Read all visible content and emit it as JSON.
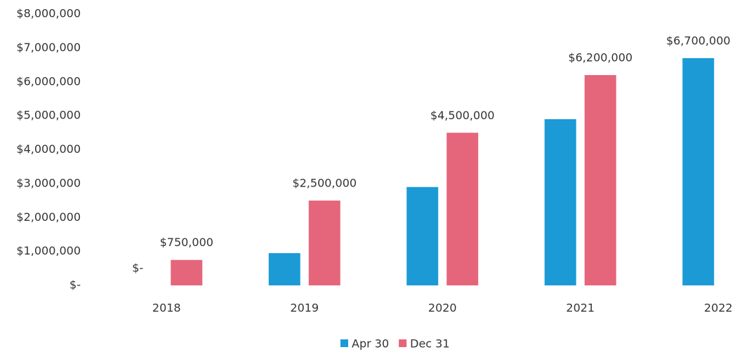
{
  "chart_data": {
    "type": "bar",
    "categories": [
      "2018",
      "2019",
      "2020",
      "2021",
      "2022"
    ],
    "series": [
      {
        "name": "Apr 30",
        "color": "#1b9ad6",
        "values": [
          0,
          950000,
          2900000,
          4900000,
          6700000
        ],
        "value_labels": [
          "$-",
          null,
          null,
          null,
          "$6,700,000"
        ]
      },
      {
        "name": "Dec 31",
        "color": "#e5657a",
        "values": [
          750000,
          2500000,
          4500000,
          6200000,
          null
        ],
        "value_labels": [
          "$750,000",
          "$2,500,000",
          "$4,500,000",
          "$6,200,000",
          null
        ]
      }
    ],
    "ylim": [
      0,
      8000000
    ],
    "yticks": [
      {
        "value": 0,
        "label": "$-"
      },
      {
        "value": 1000000,
        "label": "$1,000,000"
      },
      {
        "value": 2000000,
        "label": "$2,000,000"
      },
      {
        "value": 3000000,
        "label": "$3,000,000"
      },
      {
        "value": 4000000,
        "label": "$4,000,000"
      },
      {
        "value": 5000000,
        "label": "$5,000,000"
      },
      {
        "value": 6000000,
        "label": "$6,000,000"
      },
      {
        "value": 7000000,
        "label": "$7,000,000"
      },
      {
        "value": 8000000,
        "label": "$8,000,000"
      }
    ],
    "grid": false,
    "legend": "bottom"
  }
}
